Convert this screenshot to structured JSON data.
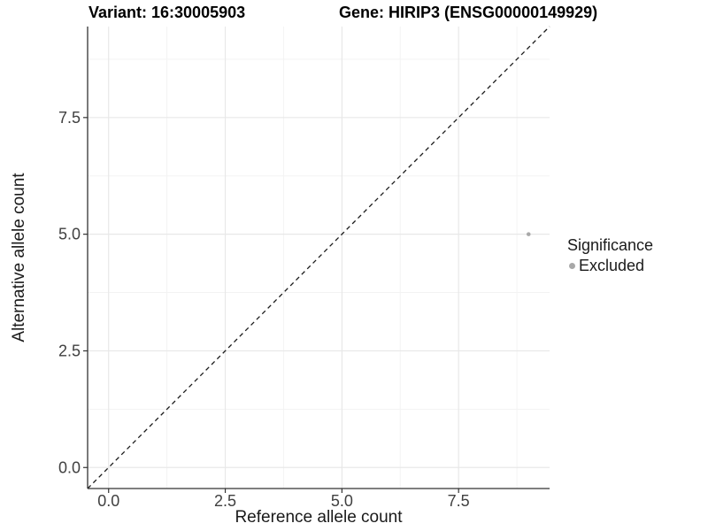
{
  "chart_data": {
    "type": "scatter",
    "title_left": "Variant: 16:30005903",
    "title_right": "Gene: HIRIP3 (ENSG00000149929)",
    "xlabel": "Reference allele count",
    "ylabel": "Alternative allele count",
    "xlim": [
      -0.45,
      9.45
    ],
    "ylim": [
      -0.45,
      9.45
    ],
    "x_major_ticks": [
      0,
      2.5,
      5,
      7.5
    ],
    "x_tick_labels": [
      "0.0",
      "2.5",
      "5.0",
      "7.5"
    ],
    "y_major_ticks": [
      0,
      2.5,
      5,
      7.5
    ],
    "y_tick_labels": [
      "0.0",
      "2.5",
      "5.0",
      "7.5"
    ],
    "x_minor_ticks": [
      1.25,
      3.75,
      6.25,
      8.75
    ],
    "y_minor_ticks": [
      1.25,
      3.75,
      6.25,
      8.75
    ],
    "grid": "on",
    "points": [
      {
        "x": 9,
        "y": 5,
        "group": "Excluded"
      }
    ],
    "identity_line": {
      "equation": "y = x",
      "style": "dashed"
    },
    "legend": {
      "title": "Significance",
      "position": "right",
      "entries": [
        {
          "label": "Excluded",
          "color": "#a8a8a8"
        }
      ]
    }
  },
  "colors": {
    "background": "#ffffff",
    "grid_major": "#e8e8e8",
    "grid_minor": "#f3f3f3",
    "axis_line": "#333333",
    "tick_mark": "#333333",
    "tick_label": "#404040",
    "axis_title": "#1a1a1a",
    "plot_title": "#000000",
    "point": "#a8a8a8",
    "dashed_line": "#1a1a1a"
  }
}
